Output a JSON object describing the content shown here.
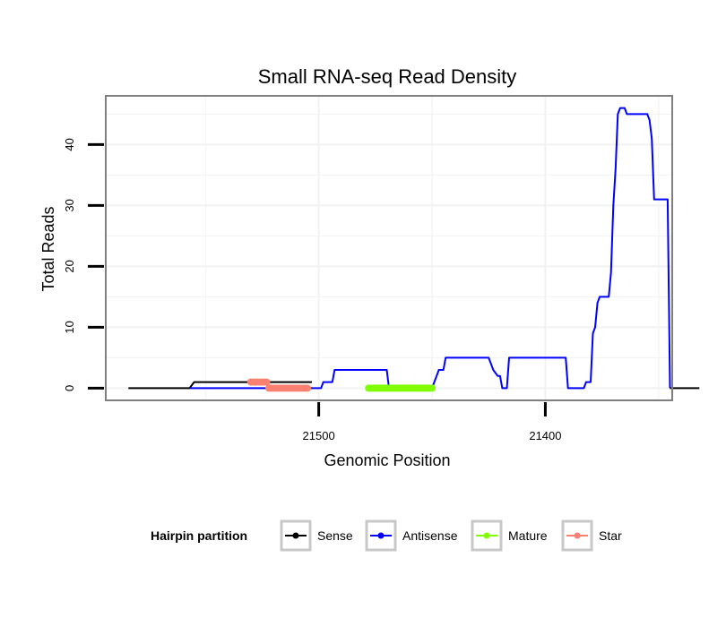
{
  "chart_data": {
    "type": "line",
    "title": "Small RNA-seq Read Density",
    "xlabel": "Genomic Position",
    "ylabel": "Total Reads",
    "x_reversed": true,
    "xlim": [
      21594,
      21344
    ],
    "ylim": [
      -2,
      48
    ],
    "x_ticks": [
      {
        "value": 21500,
        "label": "21500"
      },
      {
        "value": 21400,
        "label": "21400"
      }
    ],
    "y_ticks": [
      {
        "value": 0,
        "label": "0"
      },
      {
        "value": 10,
        "label": "10"
      },
      {
        "value": 20,
        "label": "20"
      },
      {
        "value": 30,
        "label": "30"
      },
      {
        "value": 40,
        "label": "40"
      }
    ],
    "grid": true,
    "legend": {
      "title": "Hairpin partition",
      "position": "bottom",
      "entries": [
        {
          "name": "Sense",
          "color": "#000000"
        },
        {
          "name": "Antisense",
          "color": "#0000ff"
        },
        {
          "name": "Mature",
          "color": "#7fff00"
        },
        {
          "name": "Star",
          "color": "#fa8072"
        }
      ]
    },
    "series": [
      {
        "name": "Sense",
        "color": "#000000",
        "style": "line",
        "points": [
          [
            21584,
            0
          ],
          [
            21557,
            0
          ],
          [
            21555,
            1
          ],
          [
            21538,
            1
          ],
          [
            21536,
            1
          ],
          [
            21503,
            1
          ]
        ]
      },
      {
        "name": "Antisense",
        "color": "#0000ff",
        "style": "line",
        "points": [
          [
            21557,
            0
          ],
          [
            21499,
            0
          ],
          [
            21498,
            1
          ],
          [
            21494,
            1
          ],
          [
            21493,
            3
          ],
          [
            21470,
            3
          ],
          [
            21469,
            0
          ],
          [
            21450,
            0
          ],
          [
            21448,
            2
          ],
          [
            21447,
            3
          ],
          [
            21445,
            3
          ],
          [
            21444,
            5
          ],
          [
            21425,
            5
          ],
          [
            21424,
            4
          ],
          [
            21423,
            3
          ],
          [
            21421,
            2
          ],
          [
            21420,
            2
          ],
          [
            21419,
            0
          ],
          [
            21417,
            0
          ],
          [
            21416,
            5
          ],
          [
            21391,
            5
          ],
          [
            21390,
            0
          ],
          [
            21383,
            0
          ],
          [
            21382,
            1
          ],
          [
            21380,
            1
          ],
          [
            21379,
            9
          ],
          [
            21378,
            10
          ],
          [
            21377,
            14
          ],
          [
            21376,
            15
          ],
          [
            21372,
            15
          ],
          [
            21371,
            19
          ],
          [
            21370,
            30
          ],
          [
            21369,
            36
          ],
          [
            21368,
            45
          ],
          [
            21367,
            46
          ],
          [
            21365,
            46
          ],
          [
            21364,
            45
          ],
          [
            21355,
            45
          ],
          [
            21354,
            44
          ],
          [
            21353,
            41
          ],
          [
            21352,
            31
          ],
          [
            21346,
            31
          ],
          [
            21345,
            0
          ]
        ]
      },
      {
        "name": "Sense",
        "color": "#000000",
        "style": "line",
        "points": [
          [
            21345,
            0
          ],
          [
            21332,
            0
          ]
        ]
      },
      {
        "name": "Star",
        "color": "#fa8072",
        "style": "dots",
        "points": [
          [
            21530,
            1
          ],
          [
            21529,
            1
          ],
          [
            21528,
            1
          ],
          [
            21527,
            1
          ],
          [
            21526,
            1
          ],
          [
            21525,
            1
          ],
          [
            21524,
            1
          ],
          [
            21523,
            1
          ],
          [
            21522,
            0
          ],
          [
            21521,
            0
          ],
          [
            21520,
            0
          ],
          [
            21519,
            0
          ],
          [
            21518,
            0
          ],
          [
            21517,
            0
          ],
          [
            21516,
            0
          ],
          [
            21515,
            0
          ],
          [
            21514,
            0
          ],
          [
            21513,
            0
          ],
          [
            21512,
            0
          ],
          [
            21511,
            0
          ],
          [
            21510,
            0
          ],
          [
            21509,
            0
          ],
          [
            21508,
            0
          ],
          [
            21507,
            0
          ],
          [
            21506,
            0
          ],
          [
            21505,
            0
          ]
        ]
      },
      {
        "name": "Mature",
        "color": "#7fff00",
        "style": "dots",
        "points": [
          [
            21478,
            0
          ],
          [
            21477,
            0
          ],
          [
            21476,
            0
          ],
          [
            21475,
            0
          ],
          [
            21474,
            0
          ],
          [
            21473,
            0
          ],
          [
            21472,
            0
          ],
          [
            21471,
            0
          ],
          [
            21470,
            0
          ],
          [
            21469,
            0
          ],
          [
            21468,
            0
          ],
          [
            21467,
            0
          ],
          [
            21466,
            0
          ],
          [
            21465,
            0
          ],
          [
            21464,
            0
          ],
          [
            21463,
            0
          ],
          [
            21462,
            0
          ],
          [
            21461,
            0
          ],
          [
            21460,
            0
          ],
          [
            21459,
            0
          ],
          [
            21458,
            0
          ],
          [
            21457,
            0
          ],
          [
            21456,
            0
          ],
          [
            21455,
            0
          ],
          [
            21454,
            0
          ],
          [
            21453,
            0
          ],
          [
            21452,
            0
          ],
          [
            21451,
            0
          ],
          [
            21450,
            0
          ]
        ]
      }
    ]
  }
}
